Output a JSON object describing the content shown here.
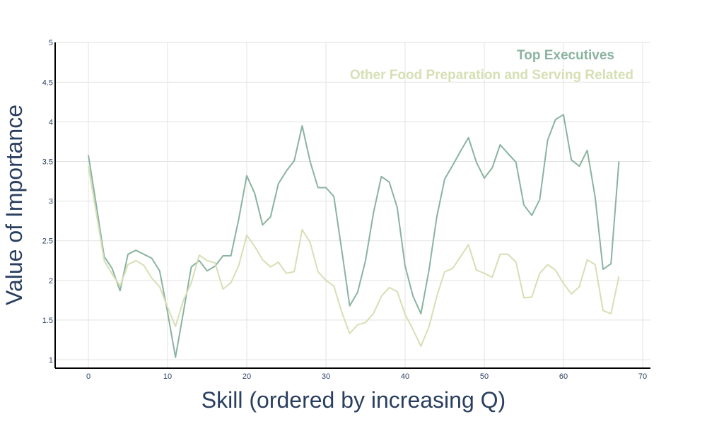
{
  "chart_data": {
    "type": "line",
    "title": "",
    "xlabel": "Skill (ordered by increasing Q)",
    "ylabel": "Value of Importance",
    "xlim": [
      -4,
      72
    ],
    "ylim": [
      0.9,
      5
    ],
    "xticks": [
      0,
      10,
      20,
      30,
      40,
      50,
      60,
      70
    ],
    "yticks": [
      1,
      1.5,
      2,
      2.5,
      3,
      3.5,
      4,
      4.5,
      5
    ],
    "grid": true,
    "legend_placement": "top-right",
    "series": [
      {
        "name": "Top Executives",
        "color": "#8ab3a1",
        "values": [
          3.58,
          2.95,
          2.3,
          2.15,
          1.87,
          2.33,
          2.38,
          2.33,
          2.28,
          2.12,
          1.6,
          1.03,
          1.6,
          2.17,
          2.25,
          2.12,
          2.18,
          2.31,
          2.31,
          2.78,
          3.32,
          3.1,
          2.7,
          2.8,
          3.22,
          3.38,
          3.51,
          3.95,
          3.5,
          3.17,
          3.17,
          3.06,
          2.38,
          1.68,
          1.85,
          2.25,
          2.85,
          3.31,
          3.24,
          2.92,
          2.18,
          1.8,
          1.58,
          2.12,
          2.8,
          3.28,
          3.45,
          3.63,
          3.8,
          3.49,
          3.29,
          3.42,
          3.71,
          3.6,
          3.49,
          2.95,
          2.82,
          3.02,
          3.77,
          4.03,
          4.09,
          3.52,
          3.44,
          3.64,
          3.05,
          2.14,
          2.21,
          3.5
        ]
      },
      {
        "name": "Other Food Preparation and Serving Related",
        "color": "#d6dfb4",
        "values": [
          3.44,
          2.85,
          2.25,
          2.08,
          1.93,
          2.2,
          2.25,
          2.19,
          2.03,
          1.92,
          1.66,
          1.42,
          1.75,
          1.97,
          2.32,
          2.25,
          2.22,
          1.89,
          1.97,
          2.19,
          2.57,
          2.43,
          2.26,
          2.17,
          2.23,
          2.09,
          2.11,
          2.64,
          2.48,
          2.11,
          2.0,
          1.93,
          1.6,
          1.33,
          1.44,
          1.47,
          1.58,
          1.8,
          1.91,
          1.86,
          1.57,
          1.38,
          1.17,
          1.41,
          1.8,
          2.11,
          2.15,
          2.3,
          2.45,
          2.13,
          2.09,
          2.04,
          2.33,
          2.33,
          2.23,
          1.78,
          1.79,
          2.09,
          2.2,
          2.13,
          1.96,
          1.83,
          1.92,
          2.26,
          2.2,
          1.62,
          1.58,
          2.05
        ]
      }
    ]
  }
}
